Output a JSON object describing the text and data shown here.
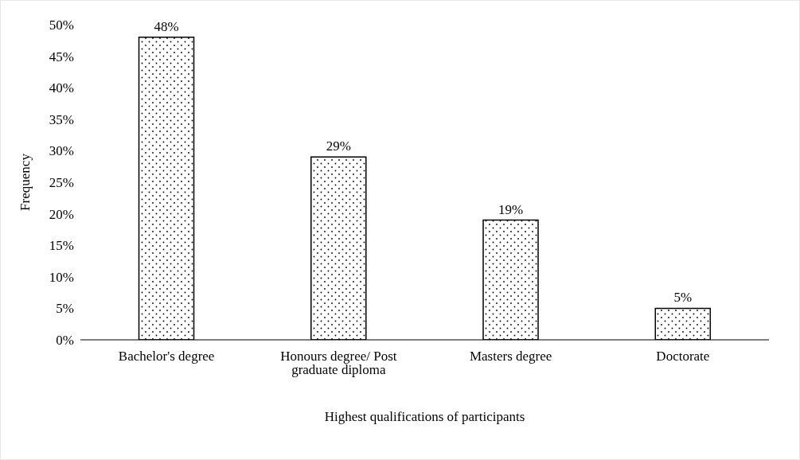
{
  "chart_data": {
    "type": "bar",
    "xlabel": "Highest qualifications of participants",
    "ylabel": "Frequency",
    "categories": [
      "Bachelor's degree",
      "Honours degree/ Post graduate diploma",
      "Masters degree",
      "Doctorate"
    ],
    "values": [
      48,
      29,
      19,
      5
    ],
    "value_labels": [
      "48%",
      "29%",
      "19%",
      "5%"
    ],
    "color": "#000000",
    "ylim": [
      0,
      50
    ],
    "yticks": [
      {
        "value": 0,
        "label": "0%"
      },
      {
        "value": 5,
        "label": "5%"
      },
      {
        "value": 10,
        "label": "10%"
      },
      {
        "value": 15,
        "label": "15%"
      },
      {
        "value": 20,
        "label": "20%"
      },
      {
        "value": 25,
        "label": "25%"
      },
      {
        "value": 30,
        "label": "30%"
      },
      {
        "value": 35,
        "label": "35%"
      },
      {
        "value": 40,
        "label": "40%"
      },
      {
        "value": 45,
        "label": "45%"
      },
      {
        "value": 50,
        "label": "50%"
      }
    ],
    "grid": false,
    "legend": false
  }
}
